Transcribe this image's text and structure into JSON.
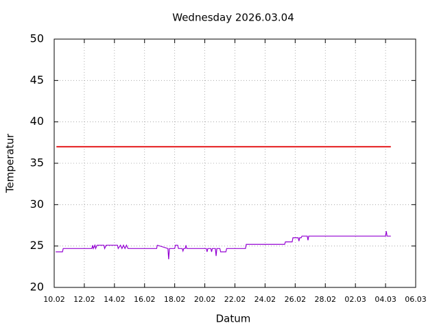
{
  "chart_data": {
    "type": "line",
    "title": "Wednesday 2026.03.04",
    "xlabel": "Datum",
    "ylabel": "Temperatur",
    "xlim": [
      0,
      24
    ],
    "xticks": [
      {
        "value": 0,
        "label": "10.02"
      },
      {
        "value": 2,
        "label": "12.02"
      },
      {
        "value": 4,
        "label": "14.02"
      },
      {
        "value": 6,
        "label": "16.02"
      },
      {
        "value": 8,
        "label": "18.02"
      },
      {
        "value": 10,
        "label": "20.02"
      },
      {
        "value": 12,
        "label": "22.02"
      },
      {
        "value": 14,
        "label": "24.02"
      },
      {
        "value": 16,
        "label": "26.02"
      },
      {
        "value": 18,
        "label": "28.02"
      },
      {
        "value": 20,
        "label": "02.03"
      },
      {
        "value": 22,
        "label": "04.03"
      },
      {
        "value": 24,
        "label": "06.03"
      }
    ],
    "ylim": [
      20,
      50
    ],
    "yticks": [
      20,
      25,
      30,
      35,
      40,
      45,
      50
    ],
    "grid": true,
    "series": [
      {
        "color": "#e41a1c",
        "x": [
          0.15,
          22.35
        ],
        "values": [
          37,
          37
        ]
      },
      {
        "color": "#9400d3",
        "x": [
          0.1,
          0.55,
          0.6,
          2.5,
          2.55,
          2.6,
          2.7,
          2.75,
          2.85,
          3.3,
          3.35,
          3.45,
          4.2,
          4.25,
          4.4,
          4.5,
          4.6,
          4.7,
          4.8,
          4.9,
          6.8,
          6.85,
          7.55,
          7.6,
          7.65,
          8.0,
          8.05,
          8.2,
          8.25,
          8.5,
          8.55,
          8.6,
          8.7,
          8.75,
          8.8,
          10.1,
          10.15,
          10.2,
          10.4,
          10.45,
          10.5,
          10.7,
          10.75,
          10.8,
          11.0,
          11.05,
          11.4,
          11.45,
          12.7,
          12.75,
          15.3,
          15.35,
          15.8,
          15.85,
          16.2,
          16.25,
          16.3,
          16.4,
          16.45,
          16.8,
          16.85,
          16.9,
          22.0,
          22.05,
          22.1,
          22.35
        ],
        "values": [
          24.3,
          24.3,
          24.7,
          24.7,
          25.1,
          24.7,
          25.1,
          24.7,
          25.1,
          25.1,
          24.7,
          25.1,
          25.1,
          24.7,
          25.1,
          24.7,
          25.1,
          24.7,
          25.1,
          24.7,
          24.7,
          25.1,
          24.7,
          23.4,
          24.7,
          24.7,
          25.1,
          25.1,
          24.7,
          24.7,
          24.4,
          24.7,
          24.7,
          25.1,
          24.7,
          24.7,
          24.3,
          24.7,
          24.7,
          24.3,
          24.7,
          24.7,
          23.8,
          24.7,
          24.7,
          24.3,
          24.3,
          24.7,
          24.7,
          25.2,
          25.2,
          25.5,
          25.5,
          26.0,
          26.0,
          25.6,
          26.0,
          26.0,
          26.2,
          26.2,
          25.7,
          26.2,
          26.2,
          26.8,
          26.2,
          26.2
        ]
      }
    ]
  }
}
